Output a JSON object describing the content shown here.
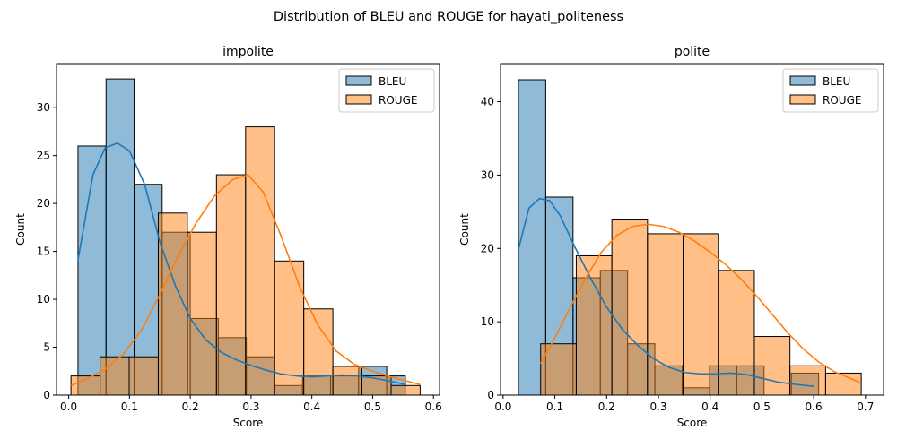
{
  "figure": {
    "suptitle": "Distribution of BLEU and ROUGE for hayati_politeness"
  },
  "colors": {
    "bleu": "#1f77b4",
    "rouge": "#ff7f0e"
  },
  "chart_data": [
    {
      "type": "histogram",
      "title": "impolite",
      "xlabel": "Score",
      "ylabel": "Count",
      "xlim": [
        -0.02,
        0.61
      ],
      "ylim": [
        0,
        34.6
      ],
      "xticks": [
        0.0,
        0.1,
        0.2,
        0.3,
        0.4,
        0.5,
        0.6
      ],
      "xtick_labels": [
        "0.0",
        "0.1",
        "0.2",
        "0.3",
        "0.4",
        "0.5",
        "0.6"
      ],
      "yticks": [
        0,
        5,
        10,
        15,
        20,
        25,
        30
      ],
      "ytick_labels": [
        "0",
        "5",
        "10",
        "15",
        "20",
        "25",
        "30"
      ],
      "legend": {
        "position": "upper-right",
        "entries": [
          "BLEU",
          "ROUGE"
        ]
      },
      "series": [
        {
          "name": "BLEU",
          "color_key": "bleu",
          "bin_edges": [
            0.0153,
            0.0615,
            0.1077,
            0.1538,
            0.2,
            0.2462,
            0.2923,
            0.3385,
            0.3846,
            0.4308,
            0.4769,
            0.5231,
            0.5538
          ],
          "counts": [
            26,
            33,
            22,
            17,
            8,
            6,
            4,
            1,
            2,
            2,
            3,
            2
          ],
          "kde": [
            [
              0.015,
              14.0
            ],
            [
              0.04,
              23.0
            ],
            [
              0.06,
              25.8
            ],
            [
              0.08,
              26.3
            ],
            [
              0.1,
              25.5
            ],
            [
              0.125,
              22.0
            ],
            [
              0.15,
              16.0
            ],
            [
              0.175,
              11.5
            ],
            [
              0.2,
              8.0
            ],
            [
              0.225,
              5.8
            ],
            [
              0.25,
              4.5
            ],
            [
              0.275,
              3.7
            ],
            [
              0.3,
              3.1
            ],
            [
              0.325,
              2.6
            ],
            [
              0.35,
              2.2
            ],
            [
              0.375,
              2.0
            ],
            [
              0.4,
              1.9
            ],
            [
              0.425,
              2.0
            ],
            [
              0.45,
              2.1
            ],
            [
              0.475,
              2.0
            ],
            [
              0.5,
              1.8
            ],
            [
              0.525,
              1.5
            ],
            [
              0.555,
              1.1
            ]
          ]
        },
        {
          "name": "ROUGE",
          "color_key": "rouge",
          "bin_edges": [
            0.0038,
            0.0517,
            0.0995,
            0.1474,
            0.1952,
            0.2431,
            0.291,
            0.3388,
            0.3867,
            0.4346,
            0.4824,
            0.5303,
            0.5781
          ],
          "counts": [
            2,
            4,
            4,
            19,
            17,
            23,
            28,
            14,
            9,
            3,
            2,
            1
          ],
          "kde": [
            [
              0.004,
              1.0
            ],
            [
              0.03,
              1.7
            ],
            [
              0.06,
              2.7
            ],
            [
              0.09,
              4.3
            ],
            [
              0.12,
              6.8
            ],
            [
              0.15,
              10.5
            ],
            [
              0.18,
              14.5
            ],
            [
              0.21,
              18.0
            ],
            [
              0.24,
              20.8
            ],
            [
              0.27,
              22.5
            ],
            [
              0.295,
              23.0
            ],
            [
              0.32,
              21.2
            ],
            [
              0.35,
              16.5
            ],
            [
              0.38,
              11.3
            ],
            [
              0.41,
              7.3
            ],
            [
              0.44,
              4.6
            ],
            [
              0.47,
              3.2
            ],
            [
              0.5,
              2.5
            ],
            [
              0.53,
              1.9
            ],
            [
              0.56,
              1.4
            ],
            [
              0.578,
              1.1
            ]
          ]
        }
      ]
    },
    {
      "type": "histogram",
      "title": "polite",
      "xlabel": "Score",
      "ylabel": "Count",
      "xlim": [
        -0.005,
        0.735
      ],
      "ylim": [
        0,
        45.2
      ],
      "xticks": [
        0.0,
        0.1,
        0.2,
        0.3,
        0.4,
        0.5,
        0.6,
        0.7
      ],
      "xtick_labels": [
        "0.0",
        "0.1",
        "0.2",
        "0.3",
        "0.4",
        "0.5",
        "0.6",
        "0.7"
      ],
      "yticks": [
        0,
        10,
        20,
        30,
        40
      ],
      "ytick_labels": [
        "0",
        "10",
        "20",
        "30",
        "40"
      ],
      "legend": {
        "position": "upper-right",
        "entries": [
          "BLEU",
          "ROUGE"
        ]
      },
      "series": [
        {
          "name": "BLEU",
          "color_key": "bleu",
          "bin_edges": [
            0.0296,
            0.0823,
            0.1351,
            0.1878,
            0.2405,
            0.2932,
            0.346,
            0.3987,
            0.4514,
            0.5041,
            0.5569,
            0.6096
          ],
          "counts": [
            43,
            27,
            16,
            17,
            7,
            4,
            1,
            4,
            4,
            0,
            3
          ],
          "kde": [
            [
              0.03,
              20.0
            ],
            [
              0.05,
              25.5
            ],
            [
              0.07,
              26.8
            ],
            [
              0.09,
              26.5
            ],
            [
              0.11,
              24.5
            ],
            [
              0.14,
              20.0
            ],
            [
              0.17,
              15.8
            ],
            [
              0.2,
              12.0
            ],
            [
              0.23,
              9.0
            ],
            [
              0.26,
              6.8
            ],
            [
              0.29,
              5.0
            ],
            [
              0.32,
              3.8
            ],
            [
              0.35,
              3.1
            ],
            [
              0.38,
              2.9
            ],
            [
              0.41,
              2.9
            ],
            [
              0.44,
              3.0
            ],
            [
              0.47,
              2.8
            ],
            [
              0.5,
              2.3
            ],
            [
              0.53,
              1.8
            ],
            [
              0.56,
              1.5
            ],
            [
              0.6,
              1.2
            ]
          ]
        },
        {
          "name": "ROUGE",
          "color_key": "rouge",
          "bin_edges": [
            0.0725,
            0.1413,
            0.2101,
            0.2789,
            0.3478,
            0.4166,
            0.4854,
            0.5542,
            0.6231,
            0.6919
          ],
          "counts": [
            7,
            19,
            24,
            22,
            22,
            17,
            8,
            4,
            3
          ],
          "kde": [
            [
              0.0725,
              4.3
            ],
            [
              0.1,
              7.8
            ],
            [
              0.13,
              12.0
            ],
            [
              0.16,
              16.0
            ],
            [
              0.19,
              19.5
            ],
            [
              0.22,
              21.8
            ],
            [
              0.25,
              23.0
            ],
            [
              0.28,
              23.3
            ],
            [
              0.31,
              23.0
            ],
            [
              0.34,
              22.2
            ],
            [
              0.37,
              21.0
            ],
            [
              0.4,
              19.5
            ],
            [
              0.43,
              17.8
            ],
            [
              0.46,
              15.8
            ],
            [
              0.49,
              13.5
            ],
            [
              0.52,
              11.0
            ],
            [
              0.55,
              8.5
            ],
            [
              0.58,
              6.3
            ],
            [
              0.61,
              4.5
            ],
            [
              0.64,
              3.2
            ],
            [
              0.67,
              2.3
            ],
            [
              0.69,
              1.7
            ]
          ]
        }
      ]
    }
  ]
}
